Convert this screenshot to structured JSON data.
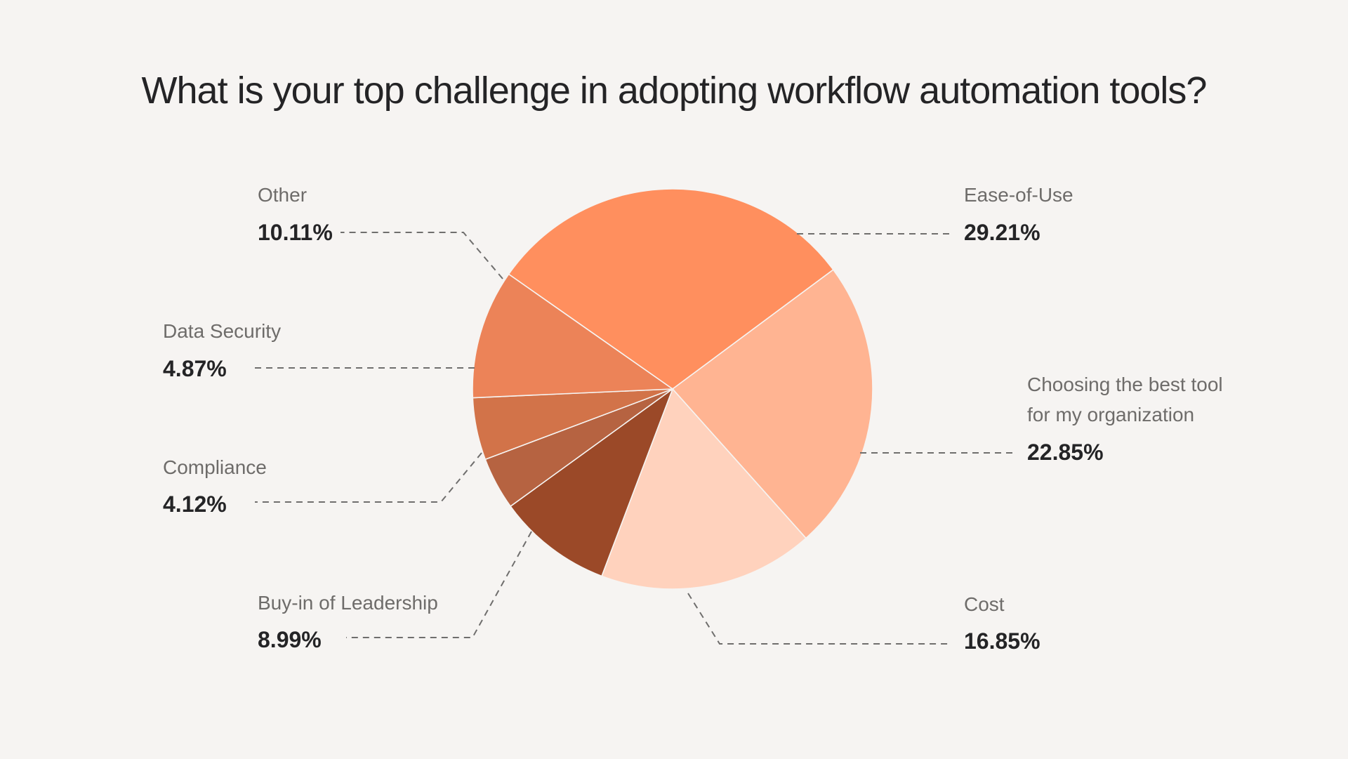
{
  "chart_data": {
    "type": "pie",
    "title": "What is your top challenge in adopting workflow automation tools?",
    "slices": [
      {
        "key": "ease",
        "category": "Ease-of-Use",
        "value": 29.21,
        "label": "29.21%",
        "color": "#ff8f5e"
      },
      {
        "key": "choose",
        "category": "Choosing the best tool for my organization",
        "category_lines": [
          "Choosing the best tool",
          "for my organization"
        ],
        "value": 22.85,
        "label": "22.85%",
        "color": "#ffb492"
      },
      {
        "key": "cost",
        "category": "Cost",
        "value": 16.85,
        "label": "16.85%",
        "color": "#ffd2bd"
      },
      {
        "key": "buyin",
        "category": "Buy-in of Leadership",
        "value": 8.99,
        "label": "8.99%",
        "color": "#9b4928"
      },
      {
        "key": "compliance",
        "category": "Compliance",
        "value": 4.12,
        "label": "4.12%",
        "color": "#b66341"
      },
      {
        "key": "security",
        "category": "Data Security",
        "value": 4.87,
        "label": "4.87%",
        "color": "#d27349"
      },
      {
        "key": "other",
        "category": "Other",
        "value": 10.11,
        "label": "10.11%",
        "color": "#ec8358"
      }
    ],
    "legend": "none",
    "labels": "outside-with-dashed-leaders"
  }
}
